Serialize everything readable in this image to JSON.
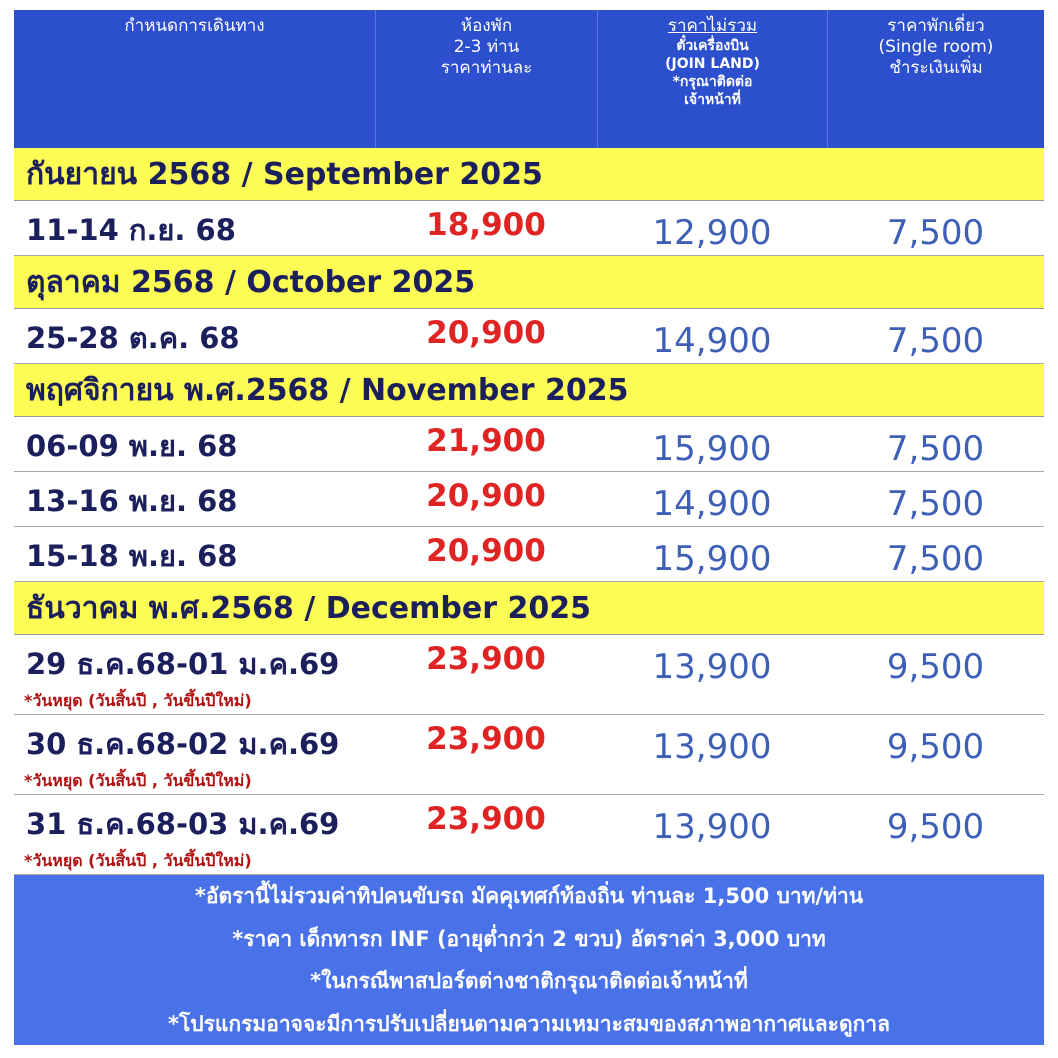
{
  "header": {
    "columns": [
      {
        "lines": [
          "กำหนดการเดินทาง"
        ]
      },
      {
        "lines": [
          "ห้องพัก",
          "2-3 ท่าน",
          "ราคาท่านละ"
        ]
      },
      {
        "lines": [
          "ราคาไม่รวม",
          "ตั๋วเครื่องบิน",
          "(JOIN LAND)",
          "*กรุณาติดต่อ",
          "เจ้าหน้าที่"
        ]
      },
      {
        "lines": [
          "ราคาพักเดี่ยว",
          "(Single room)",
          "ชำระเงินเพิ่ม"
        ]
      }
    ]
  },
  "sections": [
    {
      "title": "กันยายน 2568 / September 2025",
      "rows": [
        {
          "date": "11-14 ก.ย. 68",
          "price": "18,900",
          "land": "12,900",
          "single": "7,500"
        }
      ]
    },
    {
      "title": "ตุลาคม 2568 / October 2025",
      "rows": [
        {
          "date": "25-28 ต.ค. 68",
          "price": "20,900",
          "land": "14,900",
          "single": "7,500"
        }
      ]
    },
    {
      "title": "พฤศจิกายน พ.ศ.2568 / November 2025",
      "rows": [
        {
          "date": "06-09 พ.ย. 68",
          "price": "21,900",
          "land": "15,900",
          "single": "7,500"
        },
        {
          "date": "13-16 พ.ย. 68",
          "price": "20,900",
          "land": "14,900",
          "single": "7,500"
        },
        {
          "date": "15-18 พ.ย. 68",
          "price": "20,900",
          "land": "15,900",
          "single": "7,500"
        }
      ]
    },
    {
      "title": "ธันวาคม พ.ศ.2568 / December 2025",
      "rows": [
        {
          "date": "29 ธ.ค.68-01 ม.ค.69",
          "note": "*วันหยุด (วันสิ้นปี , วันขึ้นปีใหม่)",
          "price": "23,900",
          "land": "13,900",
          "single": "9,500"
        },
        {
          "date": "30 ธ.ค.68-02 ม.ค.69",
          "note": "*วันหยุด (วันสิ้นปี , วันขึ้นปีใหม่)",
          "price": "23,900",
          "land": "13,900",
          "single": "9,500"
        },
        {
          "date": "31 ธ.ค.68-03 ม.ค.69",
          "note": "*วันหยุด (วันสิ้นปี , วันขึ้นปีใหม่)",
          "price": "23,900",
          "land": "13,900",
          "single": "9,500"
        }
      ]
    }
  ],
  "footer": {
    "lines": [
      "*อัตรานี้ไม่รวมค่าทิปคนขับรถ มัคคุเทศก์ท้องถิ่น ท่านละ 1,500 บาท/ท่าน",
      "*ราคา เด็กทารก INF (อายุต่ำกว่า 2 ขวบ) อัตราค่า 3,000 บาท",
      "*ในกรณีพาสปอร์ตต่างชาติกรุณาติดต่อเจ้าหน้าที่",
      "*โปรแกรมอาจจะมีการปรับเปลี่ยนตามความเหมาะสมของสภาพอากาศและดูกาล"
    ]
  }
}
